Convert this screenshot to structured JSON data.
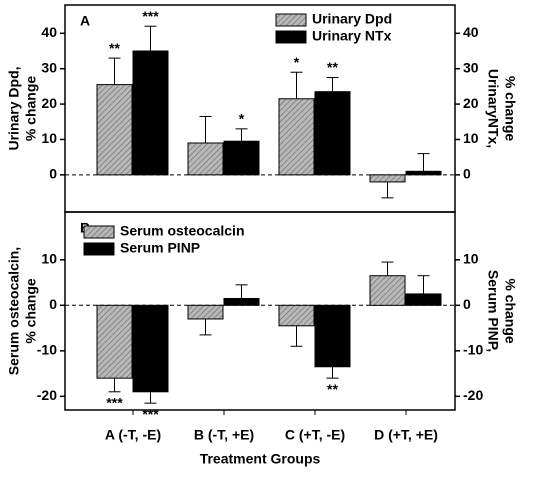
{
  "chart_data": [
    {
      "type": "bar",
      "panel_label": "A",
      "ylabel": [
        "Urinary Dpd,",
        "% change"
      ],
      "y2label": [
        "UrinaryNTx,",
        "% change"
      ],
      "series": [
        {
          "name": "Urinary Dpd",
          "color": "#b8b8b8",
          "hatch": true,
          "values": [
            25.5,
            9,
            21.5,
            -2
          ],
          "errors": [
            7.5,
            7.5,
            7.5,
            4.5
          ],
          "annotations": [
            "**",
            null,
            "*",
            null
          ]
        },
        {
          "name": "Urinary NTx",
          "color": "#000000",
          "hatch": false,
          "values": [
            35,
            9.5,
            23.5,
            1
          ],
          "errors": [
            7,
            3.5,
            4,
            5
          ],
          "annotations": [
            "***",
            "*",
            "**",
            null
          ]
        }
      ],
      "ylim": [
        -10.5,
        48
      ],
      "yticks": [
        0,
        10,
        20,
        30,
        40
      ],
      "y2lim": [
        -10.5,
        48
      ],
      "y2ticks": [
        0,
        10,
        20,
        30,
        40
      ]
    },
    {
      "type": "bar",
      "panel_label": "B",
      "ylabel": [
        "Serum osteocalcin,",
        "% change"
      ],
      "y2label": [
        "Serum PINP,",
        "% change"
      ],
      "xlabel": "Treatment Groups",
      "categories": [
        "A (-T, -E)",
        "B (-T, +E)",
        "C (+T, -E)",
        "D (+T, +E)"
      ],
      "series": [
        {
          "name": "Serum osteocalcin",
          "color": "#b8b8b8",
          "hatch": true,
          "values": [
            -16,
            -3,
            -4.5,
            6.5
          ],
          "errors": [
            3,
            3.5,
            4.5,
            3
          ],
          "annotations": [
            "***",
            null,
            null,
            null
          ]
        },
        {
          "name": "Serum PINP",
          "color": "#000000",
          "hatch": false,
          "values": [
            -19,
            1.5,
            -13.5,
            2.5
          ],
          "errors": [
            2.5,
            3,
            2.5,
            4
          ],
          "annotations": [
            "***",
            null,
            "**",
            null
          ]
        }
      ],
      "ylim": [
        -23,
        20.5
      ],
      "yticks": [
        -20,
        -10,
        0,
        10
      ],
      "y2lim": [
        -23,
        20.5
      ],
      "y2ticks": [
        -20,
        -10,
        0,
        10
      ]
    }
  ]
}
